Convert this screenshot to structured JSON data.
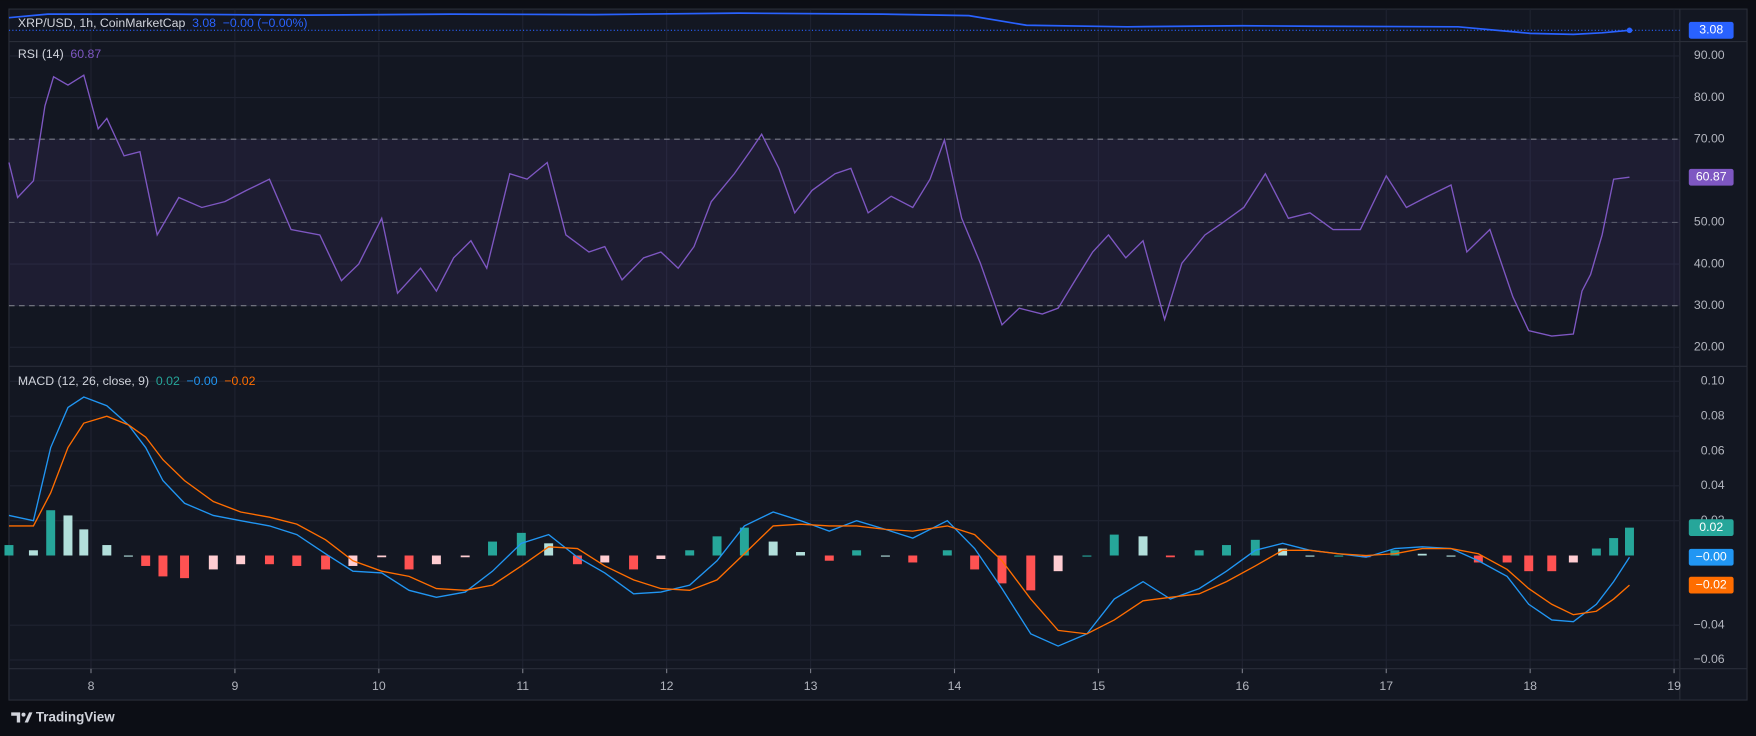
{
  "chart_data": [
    {
      "type": "area",
      "title": "XRP/USD, 1h, CoinMarketCap",
      "change": "−0.00 (−0.00%)",
      "x": [
        7.43,
        7.7,
        8.5,
        9.5,
        10.5,
        11.5,
        12.5,
        13.5,
        14.1,
        14.5,
        15.2,
        16,
        16.5,
        17.5,
        18,
        18.3,
        18.5,
        18.69
      ],
      "series": [
        {
          "color": "#2962ff",
          "values": [
            3.33,
            3.4,
            3.4,
            3.38,
            3.4,
            3.39,
            3.42,
            3.4,
            3.37,
            3.18,
            3.15,
            3.17,
            3.16,
            3.15,
            3.02,
            3.0,
            3.03,
            3.08
          ]
        }
      ],
      "xlim": [
        7.43,
        19.04
      ],
      "ylim": [
        2.88,
        3.5
      ]
    },
    {
      "type": "line",
      "title": "RSI (14)",
      "x": [
        7.43,
        7.49,
        7.6,
        7.68,
        7.74,
        7.84,
        7.95,
        8.05,
        8.11,
        8.23,
        8.34,
        8.46,
        8.61,
        8.77,
        8.93,
        9.08,
        9.24,
        9.39,
        9.59,
        9.74,
        9.86,
        10.02,
        10.13,
        10.29,
        10.4,
        10.52,
        10.64,
        10.75,
        10.91,
        11.03,
        11.17,
        11.3,
        11.46,
        11.57,
        11.69,
        11.84,
        11.96,
        12.08,
        12.19,
        12.31,
        12.47,
        12.58,
        12.66,
        12.78,
        12.89,
        13.01,
        13.17,
        13.28,
        13.4,
        13.56,
        13.71,
        13.83,
        13.93,
        14.05,
        14.18,
        14.33,
        14.45,
        14.61,
        14.72,
        14.84,
        14.96,
        15.07,
        15.19,
        15.31,
        15.46,
        15.58,
        15.74,
        15.85,
        16.01,
        16.16,
        16.32,
        16.47,
        16.63,
        16.82,
        17.0,
        17.14,
        17.29,
        17.45,
        17.56,
        17.72,
        17.88,
        17.99,
        18.15,
        18.3,
        18.36,
        18.42,
        18.5,
        18.58,
        18.69
      ],
      "series": [
        {
          "color": "#7e57c2",
          "values": [
            64.4,
            56,
            60,
            78,
            85,
            83,
            85.4,
            72.5,
            75,
            66,
            67,
            47,
            56,
            53.6,
            55,
            57.7,
            60.4,
            48.3,
            47,
            36,
            40,
            51,
            33,
            39,
            33.5,
            41.5,
            45.6,
            39,
            61.7,
            60.4,
            64.4,
            47,
            42.9,
            44.2,
            36.2,
            41.5,
            42.9,
            39,
            44.2,
            55,
            61.7,
            67.1,
            71.2,
            63,
            52.3,
            57.7,
            61.7,
            63,
            52.3,
            56.3,
            53.6,
            60.4,
            69.8,
            51,
            40.2,
            25.4,
            29.4,
            28,
            29.4,
            36.2,
            42.9,
            47,
            41.5,
            45.6,
            26.7,
            40.2,
            47,
            49.6,
            53.6,
            61.7,
            51,
            52.3,
            48.3,
            48.3,
            61.2,
            53.6,
            56.3,
            59,
            42.9,
            48.3,
            32.1,
            24,
            22.7,
            23.2,
            33.5,
            37.5,
            47,
            60.4,
            60.87
          ]
        }
      ],
      "xlim": [
        7.43,
        19.04
      ],
      "ylim": [
        15.7,
        93.2
      ],
      "yticks": [
        {
          "value": 20,
          "label": "20.00"
        },
        {
          "value": 30,
          "label": "30.00"
        },
        {
          "value": 40,
          "label": "40.00"
        },
        {
          "value": 50,
          "label": "50.00"
        },
        {
          "value": 60,
          "label": "60.00"
        },
        {
          "value": 70,
          "label": "70.00"
        },
        {
          "value": 80,
          "label": "80.00"
        },
        {
          "value": 90,
          "label": "90.00"
        }
      ],
      "band": [
        30,
        70
      ],
      "midline": 50,
      "band_color": "#7e57c2"
    },
    {
      "type": "macd",
      "title": "MACD (12, 26, close, 9)",
      "x": [
        7.43,
        7.6,
        7.72,
        7.84,
        7.95,
        8.11,
        8.26,
        8.38,
        8.5,
        8.65,
        8.85,
        9.04,
        9.24,
        9.43,
        9.63,
        9.82,
        10.02,
        10.21,
        10.4,
        10.6,
        10.79,
        10.99,
        11.18,
        11.38,
        11.57,
        11.77,
        11.96,
        12.16,
        12.35,
        12.54,
        12.74,
        12.93,
        13.13,
        13.32,
        13.52,
        13.71,
        13.95,
        14.14,
        14.33,
        14.53,
        14.72,
        14.92,
        15.11,
        15.31,
        15.5,
        15.7,
        15.89,
        16.09,
        16.28,
        16.47,
        16.67,
        16.86,
        17.06,
        17.25,
        17.45,
        17.64,
        17.84,
        17.99,
        18.15,
        18.3,
        18.46,
        18.58,
        18.69
      ],
      "series": [
        {
          "type": "histogram",
          "colors": [
            "#26a69a",
            "#b2dfdb",
            "#ff5252",
            "#ffcdd2"
          ],
          "last_label": "0.02",
          "values": [
            0.006,
            0.003,
            0.026,
            0.023,
            0.015,
            0.006,
            0,
            -0.006,
            -0.012,
            -0.013,
            -0.008,
            -0.005,
            -0.005,
            -0.006,
            -0.008,
            -0.006,
            -0.001,
            -0.008,
            -0.005,
            -0.001,
            0.008,
            0.013,
            0.007,
            -0.005,
            -0.004,
            -0.008,
            -0.002,
            0.003,
            0.011,
            0.016,
            0.008,
            0.002,
            -0.003,
            0.003,
            0,
            -0.004,
            0.003,
            -0.008,
            -0.016,
            -0.02,
            -0.009,
            0,
            0.012,
            0.011,
            -0.001,
            0.003,
            0.006,
            0.009,
            0.004,
            0,
            0,
            -0.001,
            0.003,
            0.001,
            0,
            -0.004,
            -0.004,
            -0.009,
            -0.009,
            -0.004,
            0.004,
            0.01,
            0.016
          ]
        },
        {
          "type": "line",
          "color": "#2196f3",
          "last_label": "−0.00",
          "values": [
            0.023,
            0.02,
            0.062,
            0.085,
            0.091,
            0.086,
            0.075,
            0.062,
            0.043,
            0.03,
            0.023,
            0.02,
            0.017,
            0.012,
            0.001,
            -0.009,
            -0.01,
            -0.02,
            -0.024,
            -0.021,
            -0.009,
            0.007,
            0.012,
            -0.001,
            -0.01,
            -0.022,
            -0.021,
            -0.017,
            -0.003,
            0.017,
            0.025,
            0.02,
            0.014,
            0.02,
            0.015,
            0.01,
            0.02,
            0.004,
            -0.019,
            -0.045,
            -0.052,
            -0.045,
            -0.025,
            -0.015,
            -0.025,
            -0.019,
            -0.009,
            0.003,
            0.007,
            0.003,
            0.001,
            -0.001,
            0.004,
            0.005,
            0.004,
            -0.003,
            -0.012,
            -0.028,
            -0.037,
            -0.038,
            -0.028,
            -0.015,
            -0.001
          ]
        },
        {
          "type": "line",
          "color": "#ff6d00",
          "last_label": "−0.02",
          "values": [
            0.017,
            0.017,
            0.036,
            0.062,
            0.076,
            0.08,
            0.075,
            0.068,
            0.055,
            0.043,
            0.031,
            0.025,
            0.022,
            0.018,
            0.009,
            -0.003,
            -0.009,
            -0.012,
            -0.019,
            -0.02,
            -0.017,
            -0.006,
            0.005,
            0.004,
            -0.006,
            -0.014,
            -0.019,
            -0.02,
            -0.014,
            0.001,
            0.017,
            0.018,
            0.017,
            0.017,
            0.015,
            0.014,
            0.017,
            0.012,
            -0.003,
            -0.025,
            -0.043,
            -0.045,
            -0.037,
            -0.026,
            -0.024,
            -0.022,
            -0.015,
            -0.006,
            0.003,
            0.003,
            0.001,
            0,
            0.001,
            0.004,
            0.004,
            0.001,
            -0.008,
            -0.019,
            -0.028,
            -0.034,
            -0.032,
            -0.025,
            -0.017
          ]
        }
      ],
      "xlim": [
        7.43,
        19.04
      ],
      "ylim": [
        -0.065,
        0.108
      ],
      "yticks": [
        {
          "value": 0.1,
          "label": "0.10"
        },
        0.08,
        0.06,
        0.04,
        0.02,
        {
          "value": -0.04,
          "label": "−0.04"
        },
        {
          "value": -0.06,
          "label": "−0.06"
        }
      ],
      "xticks": [
        8,
        9,
        10,
        11,
        12,
        13,
        14,
        15,
        16,
        17,
        18,
        19
      ]
    }
  ],
  "footer": {
    "brand": "TradingView"
  }
}
